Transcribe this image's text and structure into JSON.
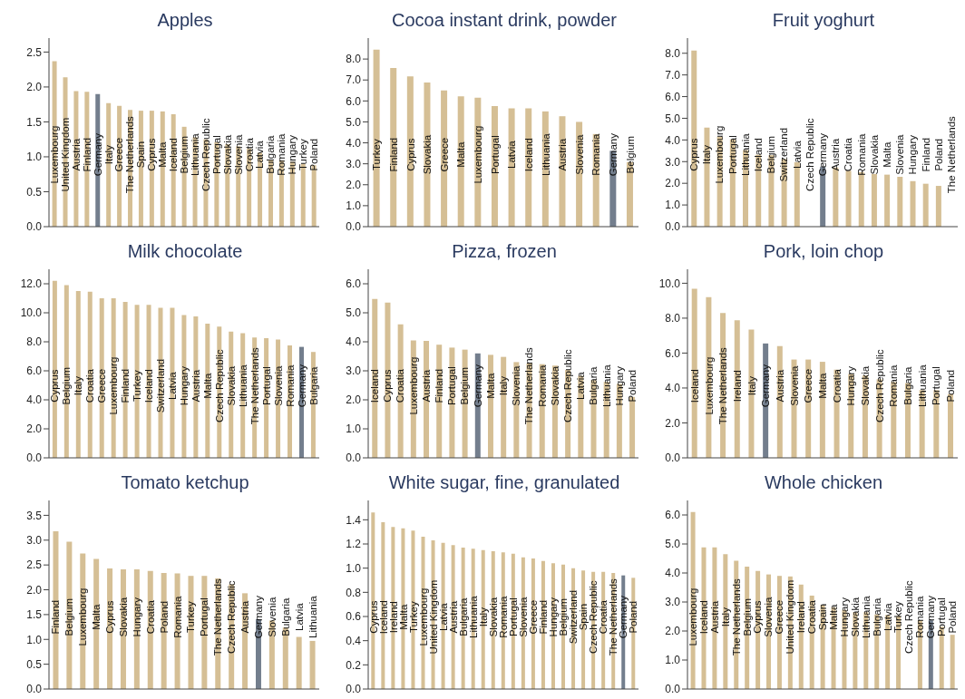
{
  "chart_data": [
    {
      "type": "bar",
      "title": "Apples",
      "categories": [
        "Luxembourg",
        "United Kingdom",
        "Austria",
        "Finland",
        "Germany",
        "Italy",
        "Greece",
        "The Netherlands",
        "Spain",
        "Cyprus",
        "Malta",
        "Iceland",
        "Belgium",
        "Lithuania",
        "Czech Republic",
        "Portugal",
        "Slovakia",
        "Slovenia",
        "Croatia",
        "Latvia",
        "Bulgaria",
        "Romania",
        "Hungary",
        "Turkey",
        "Poland"
      ],
      "values": [
        2.37,
        2.14,
        1.94,
        1.93,
        1.9,
        1.77,
        1.73,
        1.67,
        1.66,
        1.66,
        1.65,
        1.61,
        1.43,
        1.28,
        1.25,
        1.21,
        1.18,
        1.15,
        1.12,
        1.06,
        0.96,
        0.95,
        0.93,
        0.9,
        0.88
      ],
      "colors": [
        "#d5bf95",
        "#d5bf95",
        "#d5bf95",
        "#d5bf95",
        "#737e8d",
        "#d5bf95",
        "#d5bf95",
        "#d5bf95",
        "#d5bf95",
        "#d5bf95",
        "#d5bf95",
        "#d5bf95",
        "#d5bf95",
        "#d5bf95",
        "#d5bf95",
        "#d5bf95",
        "#d5bf95",
        "#d5bf95",
        "#d5bf95",
        "#d5bf95",
        "#d5bf95",
        "#d5bf95",
        "#d5bf95",
        "#d5bf95",
        "#d5bf95"
      ],
      "ylim": [
        0,
        2.7
      ],
      "yticks": [
        {
          "value": 0,
          "label": "0.0"
        },
        0.5,
        {
          "value": 1,
          "label": "1.0"
        },
        1.5,
        {
          "value": 2,
          "label": "2.0"
        },
        2.5
      ]
    },
    {
      "type": "bar",
      "title": "Cocoa instant drink, powder",
      "categories": [
        "Turkey",
        "Finland",
        "Cyprus",
        "Slovakia",
        "Greece",
        "Malta",
        "Luxembourg",
        "Portugal",
        "Latvia",
        "Iceland",
        "Lithuania",
        "Austria",
        "Slovenia",
        "Romania",
        "Germany",
        "Belgium"
      ],
      "values": [
        8.45,
        7.57,
        7.17,
        6.88,
        6.5,
        6.22,
        6.15,
        5.75,
        5.65,
        5.65,
        5.5,
        5.27,
        5.0,
        4.42,
        3.62,
        3.08
      ],
      "colors": [
        "#d5bf95",
        "#d5bf95",
        "#d5bf95",
        "#d5bf95",
        "#d5bf95",
        "#d5bf95",
        "#d5bf95",
        "#d5bf95",
        "#d5bf95",
        "#d5bf95",
        "#d5bf95",
        "#d5bf95",
        "#d5bf95",
        "#d5bf95",
        "#737e8d",
        "#d5bf95"
      ],
      "ylim": [
        0,
        9
      ],
      "yticks": [
        {
          "value": 0,
          "label": "0.0"
        },
        {
          "value": 1,
          "label": "1.0"
        },
        {
          "value": 2,
          "label": "2.0"
        },
        {
          "value": 3,
          "label": "3.0"
        },
        {
          "value": 4,
          "label": "4.0"
        },
        {
          "value": 5,
          "label": "5.0"
        },
        {
          "value": 6,
          "label": "6.0"
        },
        {
          "value": 7,
          "label": "7.0"
        },
        {
          "value": 8,
          "label": "8.0"
        }
      ]
    },
    {
      "type": "bar",
      "title": "Fruit yoghurt",
      "categories": [
        "Cyprus",
        "Italy",
        "Luxembourg",
        "Portugal",
        "Lithuania",
        "Iceland",
        "Belgium",
        "Switzerland",
        "Latvia",
        "Czech Republic",
        "Germany",
        "Austria",
        "Croatia",
        "Romania",
        "Slovakia",
        "Malta",
        "Slovenia",
        "Hungary",
        "Finland",
        "Poland",
        "The Netherlands"
      ],
      "values": [
        8.12,
        4.57,
        4.15,
        4.03,
        3.53,
        3.32,
        3.3,
        3.12,
        2.97,
        null,
        2.77,
        2.73,
        2.58,
        2.52,
        2.43,
        2.4,
        2.3,
        2.1,
        1.98,
        1.88,
        null
      ],
      "colors": [
        "#d5bf95",
        "#d5bf95",
        "#d5bf95",
        "#d5bf95",
        "#d5bf95",
        "#d5bf95",
        "#d5bf95",
        "#d5bf95",
        "#d5bf95",
        "#d5bf95",
        "#737e8d",
        "#d5bf95",
        "#d5bf95",
        "#d5bf95",
        "#d5bf95",
        "#d5bf95",
        "#d5bf95",
        "#d5bf95",
        "#d5bf95",
        "#d5bf95",
        "#d5bf95"
      ],
      "ylim": [
        0,
        8.7
      ],
      "yticks": [
        {
          "value": 0,
          "label": "0.0"
        },
        {
          "value": 1,
          "label": "1.0"
        },
        {
          "value": 2,
          "label": "2.0"
        },
        {
          "value": 3,
          "label": "3.0"
        },
        {
          "value": 4,
          "label": "4.0"
        },
        {
          "value": 5,
          "label": "5.0"
        },
        {
          "value": 6,
          "label": "6.0"
        },
        {
          "value": 7,
          "label": "7.0"
        },
        {
          "value": 8,
          "label": "8.0"
        }
      ]
    },
    {
      "type": "bar",
      "title": "Milk chocolate",
      "categories": [
        "Cyprus",
        "Belgium",
        "Italy",
        "Croatia",
        "Greece",
        "Luxembourg",
        "Finland",
        "Turkey",
        "Iceland",
        "Switzerland",
        "Latvia",
        "Hungary",
        "Austria",
        "Malta",
        "Czech Republic",
        "Slovakia",
        "Lithuania",
        "The Netherlands",
        "Portugal",
        "Slovenia",
        "Romania",
        "Germany",
        "Bulgaria"
      ],
      "values": [
        12.2,
        11.9,
        11.5,
        11.45,
        11.0,
        11.0,
        10.75,
        10.55,
        10.55,
        10.35,
        10.35,
        9.85,
        9.75,
        9.25,
        9.05,
        8.7,
        8.6,
        8.3,
        8.25,
        8.15,
        7.75,
        7.65,
        7.3
      ],
      "colors": [
        "#d5bf95",
        "#d5bf95",
        "#d5bf95",
        "#d5bf95",
        "#d5bf95",
        "#d5bf95",
        "#d5bf95",
        "#d5bf95",
        "#d5bf95",
        "#d5bf95",
        "#d5bf95",
        "#d5bf95",
        "#d5bf95",
        "#d5bf95",
        "#d5bf95",
        "#d5bf95",
        "#d5bf95",
        "#d5bf95",
        "#d5bf95",
        "#d5bf95",
        "#d5bf95",
        "#737e8d",
        "#d5bf95"
      ],
      "ylim": [
        0,
        13
      ],
      "yticks": [
        {
          "value": 0,
          "label": "0.0"
        },
        {
          "value": 2,
          "label": "2.0"
        },
        {
          "value": 4,
          "label": "4.0"
        },
        {
          "value": 6,
          "label": "6.0"
        },
        {
          "value": 8,
          "label": "8.0"
        },
        {
          "value": 10,
          "label": "10.0"
        },
        {
          "value": 12,
          "label": "12.0"
        }
      ]
    },
    {
      "type": "bar",
      "title": "Pizza, frozen",
      "categories": [
        "Iceland",
        "Cyprus",
        "Croatia",
        "Luxembourg",
        "Austria",
        "Finland",
        "Portugal",
        "Belgium",
        "Germany",
        "Malta",
        "Italy",
        "Slovenia",
        "The Netherlands",
        "Romania",
        "Slovakia",
        "Czech Republic",
        "Latvia",
        "Bulgaria",
        "Lithuania",
        "Hungary",
        "Poland"
      ],
      "values": [
        5.48,
        5.35,
        4.6,
        4.05,
        4.03,
        3.9,
        3.8,
        3.73,
        3.6,
        3.55,
        3.48,
        3.3,
        3.25,
        3.23,
        3.18,
        3.03,
        2.83,
        2.68,
        2.62,
        2.55,
        2.1
      ],
      "colors": [
        "#d5bf95",
        "#d5bf95",
        "#d5bf95",
        "#d5bf95",
        "#d5bf95",
        "#d5bf95",
        "#d5bf95",
        "#d5bf95",
        "#737e8d",
        "#d5bf95",
        "#d5bf95",
        "#d5bf95",
        "#d5bf95",
        "#d5bf95",
        "#d5bf95",
        "#d5bf95",
        "#d5bf95",
        "#d5bf95",
        "#d5bf95",
        "#d5bf95",
        "#d5bf95"
      ],
      "ylim": [
        0,
        6.5
      ],
      "yticks": [
        {
          "value": 0,
          "label": "0.0"
        },
        {
          "value": 1,
          "label": "1.0"
        },
        {
          "value": 2,
          "label": "2.0"
        },
        {
          "value": 3,
          "label": "3.0"
        },
        {
          "value": 4,
          "label": "4.0"
        },
        {
          "value": 5,
          "label": "5.0"
        },
        {
          "value": 6,
          "label": "6.0"
        }
      ]
    },
    {
      "type": "bar",
      "title": "Pork, loin chop",
      "categories": [
        "Iceland",
        "Luxembourg",
        "The Netherlands",
        "Ireland",
        "Italy",
        "Germany",
        "Austria",
        "Slovenia",
        "Greece",
        "Malta",
        "Croatia",
        "Hungary",
        "Slovakia",
        "Czech Republic",
        "Romania",
        "Bulgaria",
        "Lithuania",
        "Portugal",
        "Poland"
      ],
      "values": [
        9.68,
        9.2,
        8.3,
        7.88,
        7.35,
        6.55,
        6.4,
        5.63,
        5.63,
        5.5,
        5.05,
        4.8,
        4.72,
        4.5,
        4.35,
        4.28,
        3.88,
        3.88,
        3.65
      ],
      "colors": [
        "#d5bf95",
        "#d5bf95",
        "#d5bf95",
        "#d5bf95",
        "#d5bf95",
        "#737e8d",
        "#d5bf95",
        "#d5bf95",
        "#d5bf95",
        "#d5bf95",
        "#d5bf95",
        "#d5bf95",
        "#d5bf95",
        "#d5bf95",
        "#d5bf95",
        "#d5bf95",
        "#d5bf95",
        "#d5bf95",
        "#d5bf95"
      ],
      "ylim": [
        0,
        10.8
      ],
      "yticks": [
        {
          "value": 0,
          "label": "0.0"
        },
        {
          "value": 2,
          "label": "2.0"
        },
        {
          "value": 4,
          "label": "4.0"
        },
        {
          "value": 6,
          "label": "6.0"
        },
        {
          "value": 8,
          "label": "8.0"
        },
        {
          "value": 10,
          "label": "10.0"
        }
      ]
    },
    {
      "type": "bar",
      "title": "Tomato ketchup",
      "categories": [
        "Finland",
        "Belgium",
        "Luxembourg",
        "Malta",
        "Cyprus",
        "Slovakia",
        "Hungary",
        "Croatia",
        "Poland",
        "Romania",
        "Turkey",
        "Portugal",
        "The Netherlands",
        "Czech Republic",
        "Austria",
        "Germany",
        "Slovenia",
        "Bulgaria",
        "Latvia",
        "Lithuania"
      ],
      "values": [
        3.18,
        2.97,
        2.73,
        2.62,
        2.43,
        2.41,
        2.41,
        2.38,
        2.34,
        2.33,
        2.28,
        2.28,
        2.23,
        2.11,
        1.93,
        1.41,
        1.38,
        1.24,
        1.05,
        0.97
      ],
      "colors": [
        "#d5bf95",
        "#d5bf95",
        "#d5bf95",
        "#d5bf95",
        "#d5bf95",
        "#d5bf95",
        "#d5bf95",
        "#d5bf95",
        "#d5bf95",
        "#d5bf95",
        "#d5bf95",
        "#d5bf95",
        "#d5bf95",
        "#d5bf95",
        "#d5bf95",
        "#737e8d",
        "#d5bf95",
        "#d5bf95",
        "#d5bf95",
        "#d5bf95"
      ],
      "ylim": [
        0,
        3.8
      ],
      "yticks": [
        {
          "value": 0,
          "label": "0.0"
        },
        0.5,
        {
          "value": 1,
          "label": "1.0"
        },
        1.5,
        {
          "value": 2,
          "label": "2.0"
        },
        2.5,
        {
          "value": 3,
          "label": "3.0"
        },
        3.5
      ]
    },
    {
      "type": "bar",
      "title": "White sugar, fine, granulated",
      "categories": [
        "Cyprus",
        "Iceland",
        "Ireland",
        "Malta",
        "Turkey",
        "Luxembourg",
        "United Kingdom",
        "Latvia",
        "Austria",
        "Bulgaria",
        "Lithuania",
        "Italy",
        "Slovakia",
        "Romania",
        "Portugal",
        "Slovenia",
        "Greece",
        "Finland",
        "Hungary",
        "Belgium",
        "Switzerland",
        "Spain",
        "Czech Republic",
        "Croatia",
        "The Netherlands",
        "Germany",
        "Poland"
      ],
      "values": [
        1.46,
        1.38,
        1.34,
        1.33,
        1.31,
        1.26,
        1.23,
        1.21,
        1.19,
        1.17,
        1.16,
        1.15,
        1.14,
        1.13,
        1.12,
        1.09,
        1.08,
        1.06,
        1.04,
        1.03,
        1.0,
        0.98,
        0.97,
        0.97,
        0.96,
        0.94,
        0.92
      ],
      "colors": [
        "#d5bf95",
        "#d5bf95",
        "#d5bf95",
        "#d5bf95",
        "#d5bf95",
        "#d5bf95",
        "#d5bf95",
        "#d5bf95",
        "#d5bf95",
        "#d5bf95",
        "#d5bf95",
        "#d5bf95",
        "#d5bf95",
        "#d5bf95",
        "#d5bf95",
        "#d5bf95",
        "#d5bf95",
        "#d5bf95",
        "#d5bf95",
        "#d5bf95",
        "#d5bf95",
        "#d5bf95",
        "#d5bf95",
        "#d5bf95",
        "#d5bf95",
        "#737e8d",
        "#d5bf95"
      ],
      "ylim": [
        0,
        1.56
      ],
      "yticks": [
        {
          "value": 0,
          "label": "0.0"
        },
        0.2,
        0.4,
        0.6,
        0.8,
        {
          "value": 1,
          "label": "1.0"
        },
        1.2,
        1.4
      ]
    },
    {
      "type": "bar",
      "title": "Whole chicken",
      "categories": [
        "Luxembourg",
        "Iceland",
        "Austria",
        "Italy",
        "The Netherlands",
        "Belgium",
        "Cyprus",
        "Slovenia",
        "Greece",
        "United Kingdom",
        "Ireland",
        "Croatia",
        "Spain",
        "Malta",
        "Hungary",
        "Slovakia",
        "Lithuania",
        "Bulgaria",
        "Latvia",
        "Turkey",
        "Czech Republic",
        "Romania",
        "Germany",
        "Portugal",
        "Poland"
      ],
      "values": [
        6.1,
        4.88,
        4.88,
        4.65,
        4.42,
        4.22,
        4.07,
        3.95,
        3.9,
        3.88,
        3.6,
        3.22,
        2.9,
        2.82,
        2.73,
        2.65,
        2.65,
        2.57,
        2.55,
        2.52,
        null,
        2.37,
        2.37,
        2.15,
        1.87
      ],
      "colors": [
        "#d5bf95",
        "#d5bf95",
        "#d5bf95",
        "#d5bf95",
        "#d5bf95",
        "#d5bf95",
        "#d5bf95",
        "#d5bf95",
        "#d5bf95",
        "#d5bf95",
        "#d5bf95",
        "#d5bf95",
        "#d5bf95",
        "#d5bf95",
        "#d5bf95",
        "#d5bf95",
        "#d5bf95",
        "#d5bf95",
        "#d5bf95",
        "#d5bf95",
        "#d5bf95",
        "#d5bf95",
        "#737e8d",
        "#d5bf95",
        "#d5bf95"
      ],
      "ylim": [
        0,
        6.5
      ],
      "yticks": [
        {
          "value": 0,
          "label": "0.0"
        },
        {
          "value": 1,
          "label": "1.0"
        },
        {
          "value": 2,
          "label": "2.0"
        },
        {
          "value": 3,
          "label": "3.0"
        },
        {
          "value": 4,
          "label": "4.0"
        },
        {
          "value": 5,
          "label": "5.0"
        },
        {
          "value": 6,
          "label": "6.0"
        }
      ]
    }
  ]
}
